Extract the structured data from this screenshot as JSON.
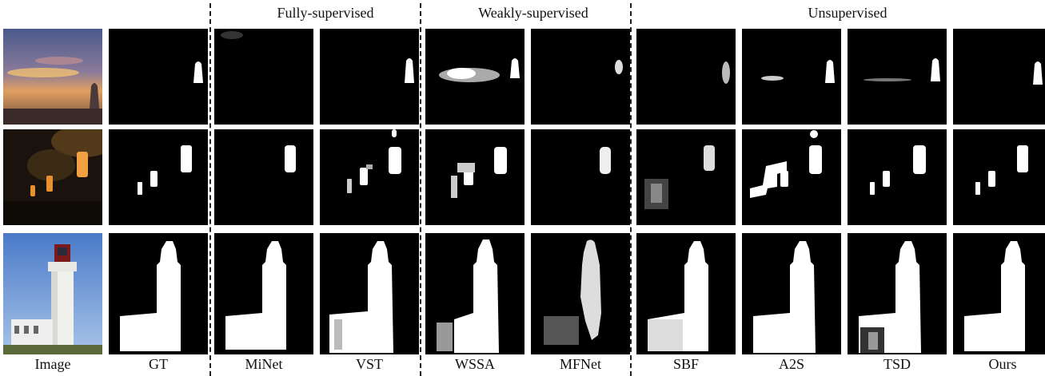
{
  "groups": {
    "fully": "Fully-supervised",
    "weakly": "Weakly-supervised",
    "unsupervised": "Unsupervised"
  },
  "columns": [
    "Image",
    "GT",
    "MiNet",
    "VST",
    "WSSA",
    "MFNet",
    "SBF",
    "A2S",
    "TSD",
    "Ours"
  ],
  "rows": [
    "sunset-rock",
    "pendant-lamps",
    "lighthouse"
  ]
}
